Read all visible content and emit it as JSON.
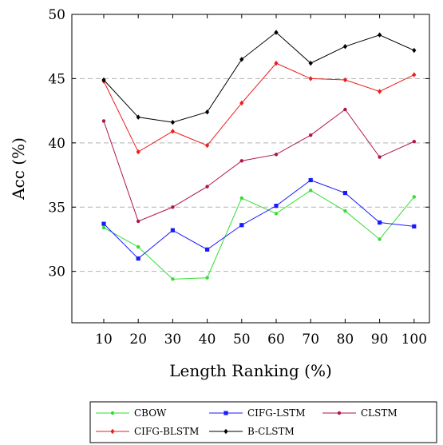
{
  "chart_data": {
    "type": "line",
    "xlabel": "Length Ranking (%)",
    "ylabel": "Acc (%)",
    "x": [
      10,
      20,
      30,
      40,
      50,
      60,
      70,
      80,
      90,
      100
    ],
    "x_tick_labels": [
      "10",
      "20",
      "30",
      "40",
      "50",
      "60",
      "70",
      "80",
      "90",
      "100"
    ],
    "ylim": [
      26,
      50
    ],
    "y_ticks": [
      30,
      35,
      40,
      45,
      50
    ],
    "y_tick_labels": [
      "30",
      "35",
      "40",
      "45",
      "50"
    ],
    "grid": "horizontal dashed at y ticks",
    "legend_position": "bottom",
    "series": [
      {
        "name": "CBOW",
        "color": "#33dd33",
        "marker": "circle",
        "values": [
          33.4,
          31.9,
          29.4,
          29.5,
          35.7,
          34.5,
          36.3,
          34.7,
          32.5,
          35.8
        ]
      },
      {
        "name": "CIFG-LSTM",
        "color": "#1a1aff",
        "marker": "square",
        "values": [
          33.7,
          31.0,
          33.2,
          31.7,
          33.6,
          35.1,
          37.1,
          36.1,
          33.8,
          33.5
        ]
      },
      {
        "name": "CLSTM",
        "color": "#b0124a",
        "marker": "circle",
        "values": [
          41.7,
          33.9,
          35.0,
          36.6,
          38.6,
          39.1,
          40.6,
          42.6,
          38.9,
          40.1
        ]
      },
      {
        "name": "CIFG-BLSTM",
        "color": "#ee1c1c",
        "marker": "diamond",
        "values": [
          44.8,
          39.3,
          40.9,
          39.8,
          43.1,
          46.2,
          45.0,
          44.9,
          44.0,
          45.3
        ]
      },
      {
        "name": "B-CLSTM",
        "color": "#000000",
        "marker": "diamond",
        "values": [
          44.9,
          42.0,
          41.6,
          42.4,
          46.5,
          48.6,
          46.2,
          47.5,
          48.4,
          47.2
        ]
      }
    ]
  }
}
